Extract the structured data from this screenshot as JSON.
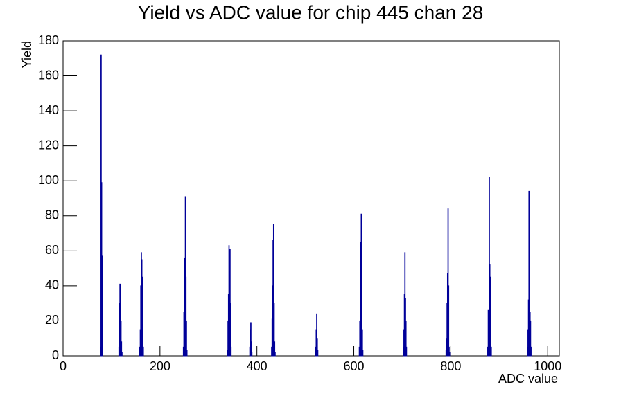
{
  "chart_data": {
    "type": "histogram",
    "title": "Yield vs ADC value for chip 445 chan 28",
    "x_label": "ADC value",
    "y_label": "Yield",
    "color": "#000099",
    "xlim": [
      0,
      1024
    ],
    "ylim": [
      0,
      180
    ],
    "xticks": [
      0,
      200,
      400,
      600,
      800,
      1000
    ],
    "yticks": [
      0,
      20,
      40,
      60,
      80,
      100,
      120,
      140,
      160,
      180
    ],
    "bins": [
      0,
      77,
      78,
      79,
      80,
      81,
      82,
      115,
      116,
      117,
      118,
      119,
      120,
      121,
      122,
      158,
      159,
      160,
      161,
      162,
      163,
      164,
      165,
      166,
      248,
      249,
      250,
      251,
      252,
      253,
      254,
      255,
      256,
      339,
      340,
      341,
      342,
      343,
      344,
      345,
      346,
      347,
      385,
      386,
      387,
      388,
      389,
      390,
      430,
      431,
      432,
      433,
      434,
      435,
      436,
      437,
      438,
      521,
      522,
      523,
      524,
      525,
      526,
      611,
      612,
      613,
      614,
      615,
      616,
      617,
      618,
      619,
      702,
      703,
      704,
      705,
      706,
      707,
      708,
      709,
      790,
      791,
      792,
      793,
      794,
      795,
      796,
      797,
      798,
      876,
      877,
      878,
      879,
      880,
      881,
      882,
      883,
      884,
      958,
      959,
      960,
      961,
      962,
      963,
      964,
      965,
      966,
      1024
    ],
    "values": [
      0,
      5,
      172,
      99,
      57,
      2,
      0,
      5,
      30,
      41,
      40,
      20,
      8,
      2,
      0,
      5,
      15,
      40,
      59,
      55,
      18,
      45,
      5,
      0,
      5,
      25,
      56,
      50,
      91,
      45,
      20,
      3,
      0,
      3,
      20,
      35,
      63,
      48,
      61,
      30,
      5,
      0,
      5,
      15,
      19,
      8,
      2,
      0,
      5,
      21,
      40,
      66,
      75,
      30,
      8,
      2,
      0,
      5,
      15,
      24,
      10,
      3,
      0,
      5,
      20,
      44,
      65,
      81,
      40,
      15,
      3,
      0,
      5,
      15,
      35,
      59,
      33,
      20,
      5,
      0,
      3,
      10,
      30,
      47,
      84,
      40,
      5,
      2,
      0,
      5,
      26,
      20,
      102,
      52,
      45,
      35,
      5,
      0,
      5,
      15,
      32,
      94,
      64,
      25,
      20,
      5,
      0
    ]
  }
}
